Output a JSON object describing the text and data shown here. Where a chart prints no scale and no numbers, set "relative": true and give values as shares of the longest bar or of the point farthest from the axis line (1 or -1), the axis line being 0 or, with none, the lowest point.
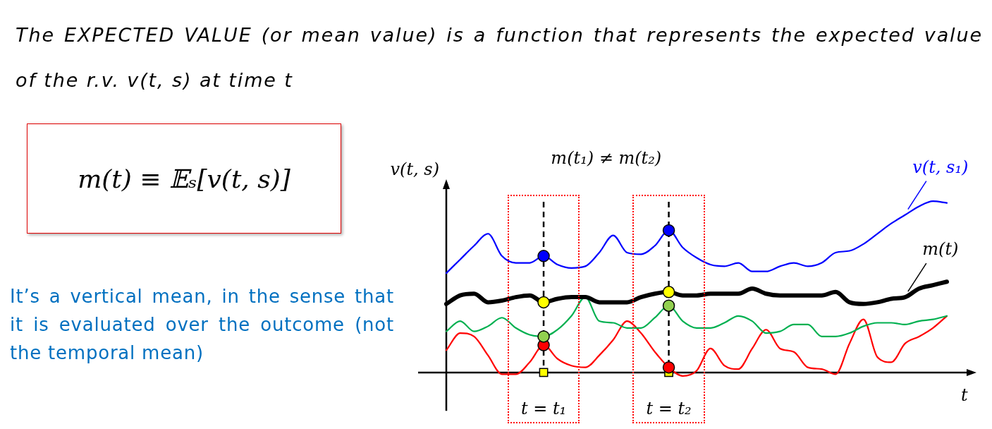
{
  "chart_data": {
    "type": "line",
    "relative": true,
    "marker": "none",
    "tick_labels": "x",
    "title": "The EXPECTED VALUE (or mean value) is a function that represents the expected value of the r.v. v(t, s) at time t",
    "xlabel": "t",
    "ylabel": "v(t, s)",
    "annotations": [
      "m(t) ≡ 𝔼ₛ[v(t, s)]",
      "It’s a vertical mean, in the sense that it is evaluated over the outcome (not the temporal mean)",
      "m(t₁) ≠ m(t₂)"
    ],
    "categories": [
      null,
      null,
      null,
      null,
      null,
      null,
      null,
      "t = t₁",
      null,
      null,
      null,
      null,
      null,
      null,
      null,
      null,
      "t = t₂",
      null,
      null,
      null,
      null,
      null,
      null,
      null,
      null,
      null,
      null,
      null,
      null,
      null,
      null,
      null,
      null,
      null,
      null,
      null,
      null
    ],
    "ref_lines": [
      {
        "axis": "x",
        "value": "t = t₁",
        "line_style": "dashed",
        "color": "#000000"
      },
      {
        "axis": "x",
        "value": "t = t₂",
        "line_style": "dashed",
        "color": "#000000"
      }
    ],
    "series": [
      {
        "name": "v(t, s₁)",
        "color": "#0000ff",
        "values": [
          0.58,
          0.66,
          0.74,
          0.81,
          0.68,
          0.64,
          0.64,
          0.68,
          0.63,
          0.61,
          0.62,
          0.7,
          0.8,
          0.7,
          0.69,
          0.74,
          0.83,
          0.73,
          0.67,
          0.63,
          0.62,
          0.64,
          0.59,
          0.59,
          0.62,
          0.64,
          0.62,
          0.64,
          0.7,
          0.71,
          0.75,
          0.81,
          0.87,
          0.92,
          0.97,
          1,
          0.99
        ]
      },
      {
        "name": "m(t)",
        "color": "#000000",
        "values": [
          0.4,
          0.45,
          0.46,
          0.41,
          0.42,
          0.44,
          0.45,
          0.41,
          0.43,
          0.44,
          0.44,
          0.41,
          0.41,
          0.41,
          0.44,
          0.46,
          0.47,
          0.45,
          0.45,
          0.46,
          0.46,
          0.46,
          0.49,
          0.46,
          0.45,
          0.45,
          0.45,
          0.45,
          0.47,
          0.41,
          0.4,
          0.41,
          0.43,
          0.44,
          0.49,
          0.51,
          0.53
        ]
      },
      {
        "color": "#00b050",
        "values": [
          0.24,
          0.3,
          0.24,
          0.27,
          0.32,
          0.26,
          0.22,
          0.21,
          0.25,
          0.33,
          0.44,
          0.3,
          0.29,
          0.26,
          0.26,
          0.32,
          0.39,
          0.3,
          0.26,
          0.26,
          0.29,
          0.33,
          0.3,
          0.23,
          0.24,
          0.28,
          0.28,
          0.21,
          0.21,
          0.23,
          0.27,
          0.29,
          0.29,
          0.28,
          0.3,
          0.31,
          0.33
        ]
      },
      {
        "color": "#ff0000",
        "values": [
          0.13,
          0.23,
          0.21,
          0.1,
          -0.01,
          -0.01,
          0.06,
          0.16,
          0.08,
          0.04,
          0.03,
          0.1,
          0.19,
          0.3,
          0.23,
          0.12,
          0.03,
          -0.02,
          0.01,
          0.14,
          0.04,
          0.02,
          0.14,
          0.25,
          0.14,
          0.12,
          0.03,
          0.02,
          -0.01,
          0.17,
          0.31,
          0.09,
          0.06,
          0.17,
          0.21,
          0.26,
          0.33
        ]
      },
      {
        "type": "scatter",
        "marker": "circle",
        "color": "#0000ff",
        "x": [
          "t = t₁",
          "t = t₂"
        ],
        "values": [
          0.68,
          0.83
        ]
      },
      {
        "type": "scatter",
        "marker": "circle",
        "color": "#ffff00",
        "x": [
          "t = t₁",
          "t = t₂"
        ],
        "values": [
          0.41,
          0.47
        ]
      },
      {
        "type": "scatter",
        "marker": "circle",
        "color": "#92d050",
        "x": [
          "t = t₁",
          "t = t₂"
        ],
        "values": [
          0.21,
          0.39
        ]
      },
      {
        "type": "scatter",
        "marker": "circle",
        "color": "#ff0000",
        "x": [
          "t = t₁",
          "t = t₂"
        ],
        "values": [
          0.16,
          0.03
        ]
      },
      {
        "type": "scatter",
        "marker": "square",
        "color": "#ffff00",
        "x": [
          "t = t₁",
          "t = t₂"
        ],
        "values": [
          0,
          0
        ]
      }
    ]
  }
}
